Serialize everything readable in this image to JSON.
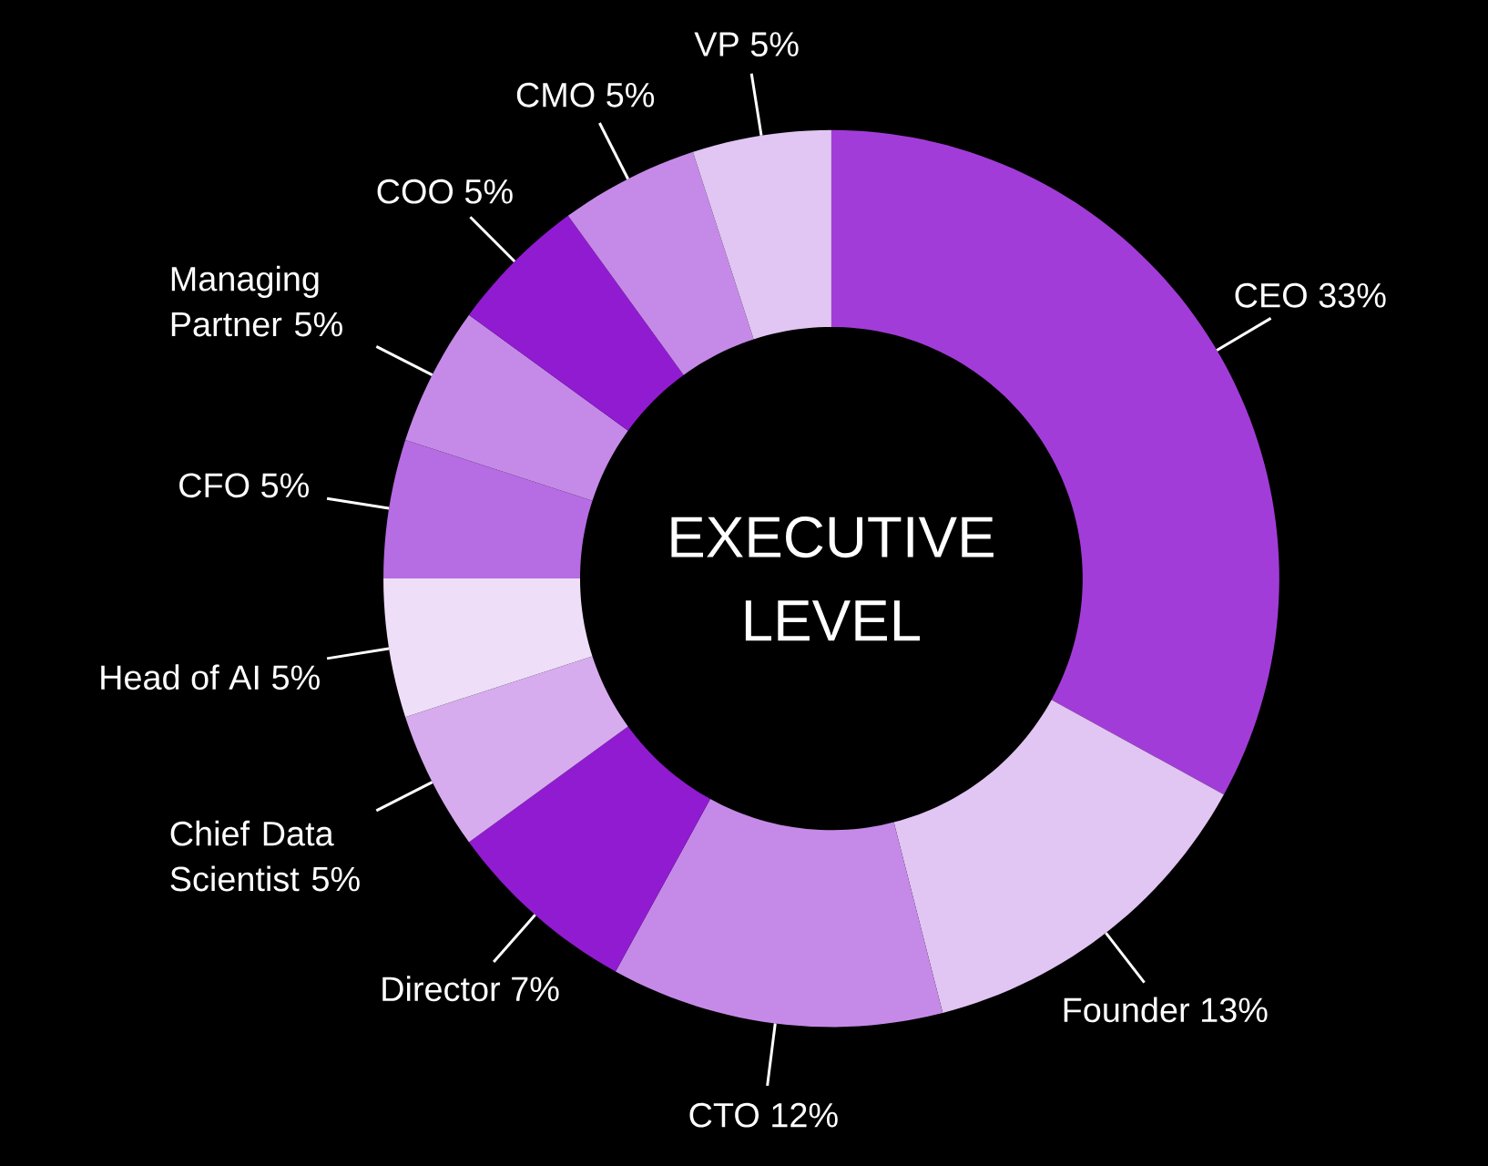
{
  "chart_data": {
    "type": "donut",
    "title": "EXECUTIVE LEVEL",
    "categories": [
      "CEO",
      "Founder",
      "CTO",
      "Director",
      "Chief Data Scientist",
      "Head of AI",
      "CFO",
      "Managing Partner",
      "COO",
      "CMO",
      "VP"
    ],
    "values": [
      33,
      13,
      12,
      7,
      5,
      5,
      5,
      5,
      5,
      5,
      5
    ],
    "value_labels": [
      "33%",
      "13%",
      "12%",
      "7%",
      "5%",
      "5%",
      "5%",
      "5%",
      "5%",
      "5%",
      "5%"
    ],
    "colors": [
      "#a23cd8",
      "#e1c5f2",
      "#c58ae8",
      "#911bd1",
      "#d6acee",
      "#efdef8",
      "#b66ce2",
      "#c58ae8",
      "#911bd1",
      "#c58ae8",
      "#e1c5f2"
    ]
  }
}
